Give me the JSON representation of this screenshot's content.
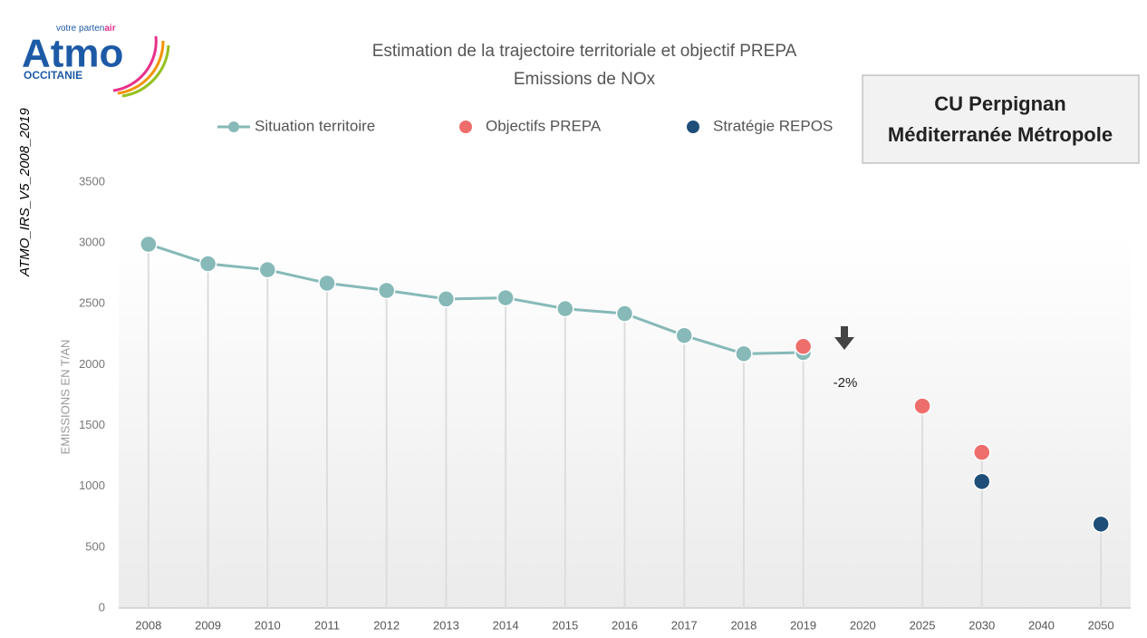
{
  "logo": {
    "name": "Atmo",
    "tagline": "votre parten",
    "tagline_accent": "air",
    "region": "OCCITANIE"
  },
  "chart_data": {
    "type": "line",
    "title": "Estimation de la trajectoire territoriale  et objectif PREPA",
    "subtitle": "Emissions de NOx",
    "side_label": "ATMO_IRS_V5_2008_2019",
    "box_label": [
      "CU Perpignan",
      "Méditerranée Métropole"
    ],
    "y_label": "EMISSIONS  EN T/AN",
    "annotation": "-2%",
    "categories": [
      "2008",
      "2009",
      "2010",
      "2011",
      "2012",
      "2013",
      "2014",
      "2015",
      "2016",
      "2017",
      "2018",
      "2019",
      "2020",
      "2025",
      "2030",
      "2040",
      "2050"
    ],
    "series": [
      {
        "name": "Situation territoire",
        "color": "#86b9b8",
        "style": "line",
        "values": [
          2990,
          2830,
          2780,
          2670,
          2610,
          2540,
          2550,
          2460,
          2420,
          2240,
          2090,
          2100,
          null,
          null,
          null,
          null,
          null
        ]
      },
      {
        "name": "Objectifs PREPA",
        "color": "#ee6e6c",
        "style": "dot",
        "values": [
          null,
          null,
          null,
          null,
          null,
          null,
          null,
          null,
          null,
          null,
          null,
          2150,
          null,
          1660,
          1280,
          null,
          null
        ]
      },
      {
        "name": "Stratégie REPOS",
        "color": "#1f4e79",
        "style": "dot",
        "values": [
          null,
          null,
          null,
          null,
          null,
          null,
          null,
          null,
          null,
          null,
          null,
          null,
          null,
          null,
          1040,
          null,
          690
        ]
      }
    ],
    "ylim": [
      0,
      3500
    ],
    "yticks": [
      0,
      500,
      1000,
      1500,
      2000,
      2500,
      3000,
      3500
    ],
    "grid": false
  }
}
